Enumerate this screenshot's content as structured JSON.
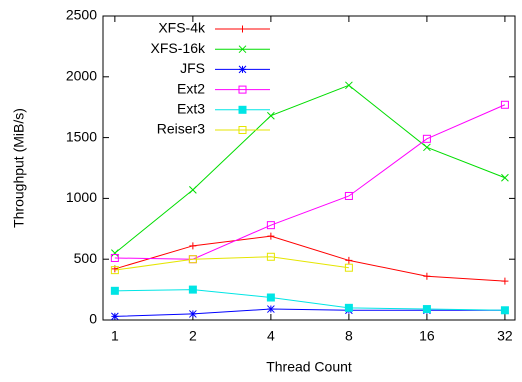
{
  "chart_data": {
    "type": "line",
    "x_label": "Thread Count",
    "y_label": "Throughput (MiB/s)",
    "x": [
      1,
      2,
      4,
      8,
      16,
      32
    ],
    "xlog": true,
    "xlim": [
      0.9,
      35
    ],
    "xticks": [
      1,
      2,
      4,
      8,
      16,
      32
    ],
    "ylim": [
      0,
      2500
    ],
    "yticks": [
      0,
      500,
      1000,
      1500,
      2000,
      2500
    ],
    "grid": false,
    "legend": "upper-left",
    "series": [
      {
        "name": "XFS-4k",
        "color": "#ff0000",
        "marker": "plus",
        "values": [
          420,
          610,
          690,
          490,
          360,
          320
        ]
      },
      {
        "name": "XFS-16k",
        "color": "#00dd00",
        "marker": "cross",
        "values": [
          550,
          1070,
          1680,
          1930,
          1420,
          1170
        ]
      },
      {
        "name": "JFS",
        "color": "#0000ff",
        "marker": "star",
        "values": [
          30,
          50,
          90,
          80,
          80,
          80
        ]
      },
      {
        "name": "Ext2",
        "color": "#ff00ff",
        "marker": "square-open",
        "values": [
          510,
          500,
          780,
          1020,
          1490,
          1770
        ]
      },
      {
        "name": "Ext3",
        "color": "#00e5e5",
        "marker": "square",
        "values": [
          240,
          250,
          185,
          100,
          90,
          80
        ]
      },
      {
        "name": "Reiser3",
        "color": "#e5e500",
        "marker": "square-open",
        "values": [
          410,
          500,
          520,
          430,
          null,
          null
        ]
      }
    ]
  }
}
